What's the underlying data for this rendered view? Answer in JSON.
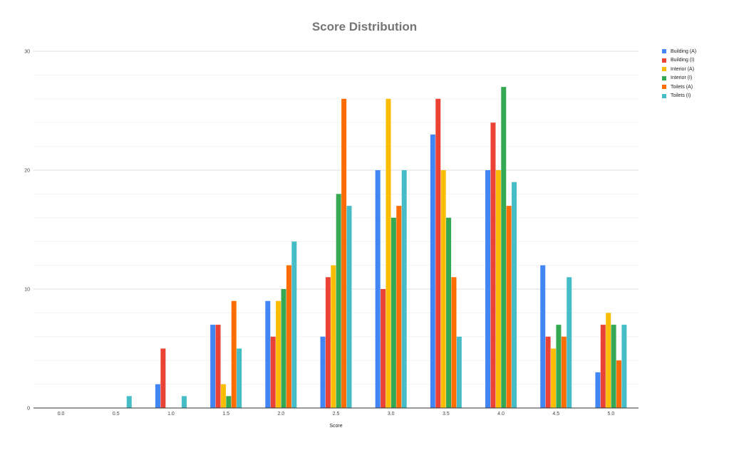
{
  "chart_data": {
    "type": "bar",
    "title": "Score Distribution",
    "xlabel": "Score",
    "ylabel": "",
    "categories": [
      "0.0",
      "0.5",
      "1.0",
      "1.5",
      "2.0",
      "2.5",
      "3.0",
      "3.5",
      "4.0",
      "4.5",
      "5.0"
    ],
    "yticks": [
      "0",
      "10",
      "20",
      "30"
    ],
    "ylim": [
      0,
      30
    ],
    "grid": true,
    "legend_position": "right",
    "series": [
      {
        "name": "Building (A)",
        "color": "#4285f4",
        "values": [
          0,
          0,
          2,
          7,
          9,
          6,
          20,
          23,
          20,
          12,
          3
        ]
      },
      {
        "name": "Building (I)",
        "color": "#ea4335",
        "values": [
          0,
          0,
          5,
          7,
          6,
          11,
          10,
          26,
          24,
          6,
          7
        ]
      },
      {
        "name": "Interior (A)",
        "color": "#fbbc04",
        "values": [
          0,
          0,
          0,
          2,
          9,
          12,
          26,
          20,
          20,
          5,
          8
        ]
      },
      {
        "name": "Interior (I)",
        "color": "#34a853",
        "values": [
          0,
          0,
          0,
          1,
          10,
          18,
          16,
          16,
          27,
          7,
          7
        ]
      },
      {
        "name": "Toilets (A)",
        "color": "#ff6d01",
        "values": [
          0,
          0,
          0,
          9,
          12,
          26,
          17,
          11,
          17,
          6,
          4
        ]
      },
      {
        "name": "Toilets (I)",
        "color": "#46bdc6",
        "values": [
          0,
          1,
          1,
          5,
          14,
          17,
          20,
          6,
          19,
          11,
          7
        ]
      }
    ]
  }
}
